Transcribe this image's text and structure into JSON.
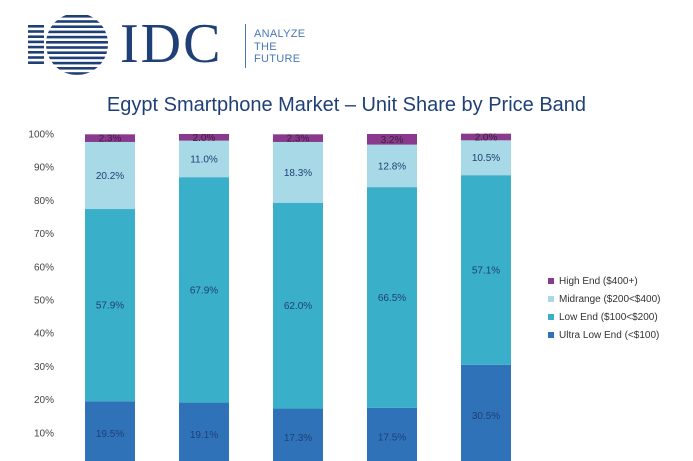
{
  "brand": {
    "name": "IDC",
    "tagline": [
      "ANALYZE",
      "THE",
      "FUTURE"
    ]
  },
  "colors": {
    "brand": "#1f3f77",
    "high_end": "#8a3a8c",
    "midrange": "#a8d9e6",
    "low_end": "#3aafc9",
    "ultra_low_end": "#2f72b8"
  },
  "chart_data": {
    "type": "bar",
    "stacked": true,
    "title": "Egypt Smartphone Market – Unit Share by Price Band",
    "xlabel": "",
    "ylabel": "",
    "ylim": [
      0,
      100
    ],
    "y_ticks": [
      "10%",
      "20%",
      "30%",
      "40%",
      "50%",
      "60%",
      "70%",
      "80%",
      "90%",
      "100%"
    ],
    "grid": false,
    "legend_position": "right",
    "categories": [
      "",
      "",
      "",
      "",
      ""
    ],
    "series": [
      {
        "name": "Ultra Low End (<$100)",
        "color": "#2f72b8",
        "label_color": "#1f3f77",
        "values": [
          19.5,
          19.1,
          17.3,
          17.5,
          30.5
        ],
        "labels": [
          "19.5%",
          "19.1%",
          "17.3%",
          "17.5%",
          "30.5%"
        ]
      },
      {
        "name": "Low End ($100<$200)",
        "color": "#3aafc9",
        "label_color": "#1f3f77",
        "values": [
          57.9,
          67.9,
          62.0,
          66.5,
          57.1
        ],
        "labels": [
          "57.9%",
          "67.9%",
          "62.0%",
          "66.5%",
          "57.1%"
        ]
      },
      {
        "name": "Midrange ($200<$400)",
        "color": "#a8d9e6",
        "label_color": "#1f3f77",
        "values": [
          20.2,
          11.0,
          18.3,
          12.8,
          10.5
        ],
        "labels": [
          "20.2%",
          "11.0%",
          "18.3%",
          "12.8%",
          "10.5%"
        ]
      },
      {
        "name": "High End ($400+)",
        "color": "#8a3a8c",
        "label_color": "#3a2140",
        "values": [
          2.3,
          2.0,
          2.3,
          3.2,
          2.0
        ],
        "labels": [
          "2.3%",
          "2.0%",
          "2.3%",
          "3.2%",
          "2.0%"
        ]
      }
    ]
  }
}
